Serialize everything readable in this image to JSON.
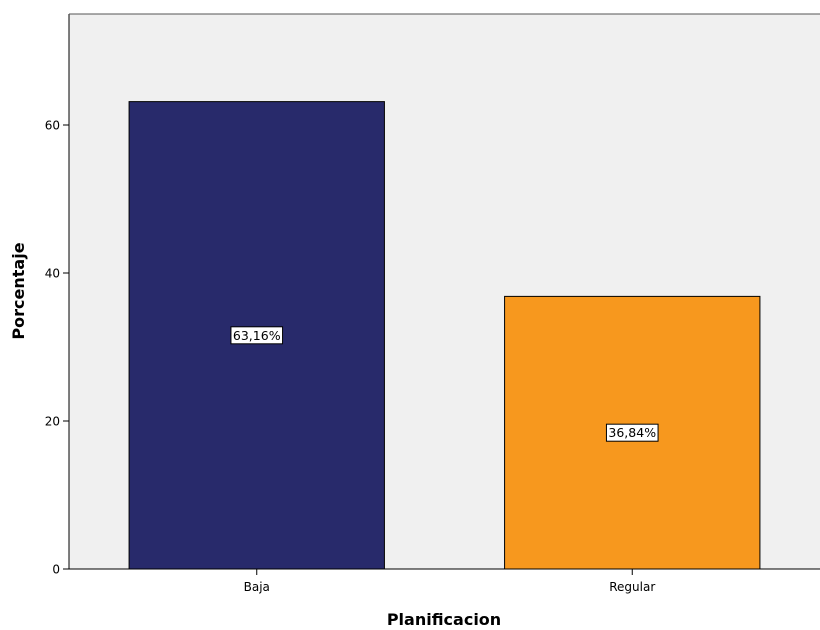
{
  "chart_data": {
    "type": "bar",
    "categories": [
      "Baja",
      "Regular"
    ],
    "values": [
      63.16,
      36.84
    ],
    "data_labels": [
      "63,16%",
      "36,84%"
    ],
    "colors": [
      "#282a6b",
      "#f7981e"
    ],
    "plot_background": "#f0f0f0",
    "xlabel": "Planificacion",
    "ylabel": "Porcentaje",
    "ylim": [
      0,
      75
    ],
    "yticks": [
      0,
      20,
      40,
      60
    ],
    "ytick_labels": [
      "0",
      "20",
      "40",
      "60"
    ],
    "grid": false
  }
}
